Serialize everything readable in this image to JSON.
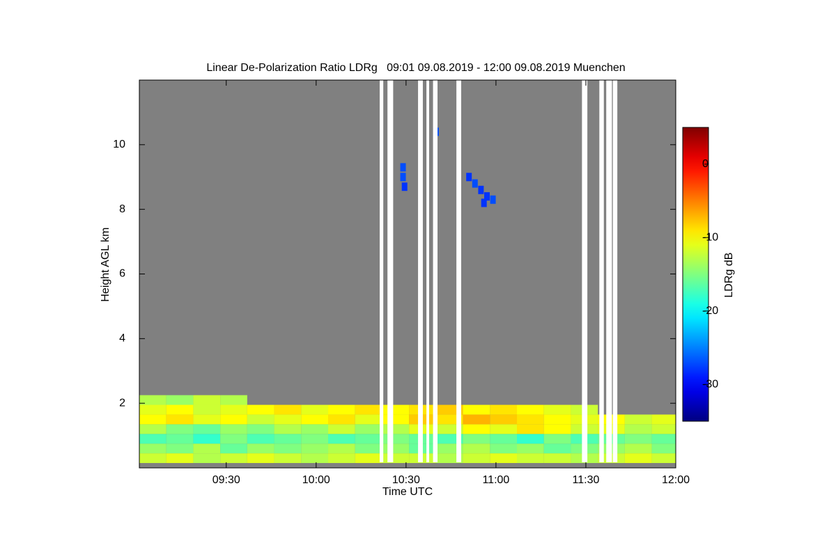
{
  "chart_data": {
    "type": "heatmap",
    "title": "Linear De-Polarization Ratio LDRg   09:01 09.08.2019 - 12:00 09.08.2019 Muenchen",
    "x_label": "Time UTC",
    "y_label": "Height AGL km",
    "colorbar_label": "LDRg dB",
    "colormap": "jet",
    "background": "#808080",
    "xlim": [
      541,
      720
    ],
    "ylim": [
      0,
      12
    ],
    "xticks": [
      {
        "value": 570,
        "label": "09:30"
      },
      {
        "value": 600,
        "label": "10:00"
      },
      {
        "value": 630,
        "label": "10:30"
      },
      {
        "value": 660,
        "label": "11:00"
      },
      {
        "value": 690,
        "label": "11:30"
      },
      {
        "value": 720,
        "label": "12:00"
      }
    ],
    "yticks": [
      2,
      4,
      6,
      8,
      10
    ],
    "clim": [
      -35,
      5
    ],
    "cticks": [
      0,
      -10,
      -20,
      -30
    ],
    "x": [
      541,
      550,
      559,
      568,
      577,
      586,
      595,
      604,
      613,
      622,
      631,
      640,
      649,
      658,
      667,
      676,
      685,
      694,
      703,
      712
    ],
    "y": [
      0.3,
      0.6,
      0.9,
      1.2,
      1.5,
      1.8,
      2.1
    ],
    "z": [
      [
        -12,
        -11,
        -13,
        -12,
        -11,
        -12,
        -13,
        -12,
        -11,
        -12,
        -12,
        -13,
        -12,
        -11,
        -12,
        -12,
        -13,
        -12,
        -11,
        -12
      ],
      [
        -14,
        -15,
        -13,
        -16,
        -14,
        -15,
        -14,
        -13,
        -15,
        -14,
        -16,
        -14,
        -13,
        -15,
        -14,
        -16,
        -15,
        -14,
        -13,
        -15
      ],
      [
        -17,
        -16,
        -18,
        -15,
        -17,
        -16,
        -15,
        -17,
        -16,
        -15,
        -16,
        -17,
        -15,
        -16,
        -18,
        -15,
        -17,
        -16,
        -15,
        -16
      ],
      [
        -13,
        -15,
        -16,
        -14,
        -15,
        -13,
        -14,
        -12,
        -14,
        -13,
        -11,
        -12,
        -10,
        -11,
        -9,
        -10,
        -12,
        -11,
        -13,
        -12
      ],
      [
        -10,
        -9,
        -11,
        -10,
        -12,
        -11,
        -10,
        -9,
        -11,
        -10,
        -8,
        -9,
        -7,
        -8,
        -9,
        -10,
        -11,
        -10,
        -12,
        -11
      ],
      [
        -11,
        -10,
        -12,
        -11,
        -10,
        -9,
        -11,
        -10,
        -9,
        -10,
        -9,
        -8,
        -10,
        -9,
        -10,
        -11,
        -12,
        null,
        null,
        null
      ],
      [
        -13,
        -14,
        -12,
        -13,
        null,
        null,
        null,
        null,
        null,
        null,
        null,
        null,
        null,
        null,
        null,
        null,
        null,
        null,
        null,
        null
      ]
    ],
    "points": {
      "x": [
        629,
        629,
        629.5,
        640,
        651,
        653,
        655,
        657,
        659,
        656
      ],
      "y": [
        9.3,
        9.0,
        8.7,
        10.4,
        9.0,
        8.8,
        8.6,
        8.4,
        8.3,
        8.2
      ],
      "values": [
        -27,
        -27,
        -28,
        -27,
        -28,
        -27,
        -28,
        -28,
        -27,
        -28
      ]
    },
    "gaps": [
      [
        621.2,
        622.4
      ],
      [
        623.8,
        625.7
      ],
      [
        634,
        635.6
      ],
      [
        636.8,
        637.7
      ],
      [
        639,
        640.5
      ],
      [
        646.8,
        648.4
      ],
      [
        688.7,
        690.5
      ],
      [
        694.5,
        696
      ],
      [
        696.8,
        698.7
      ],
      [
        699,
        700.5
      ]
    ]
  }
}
